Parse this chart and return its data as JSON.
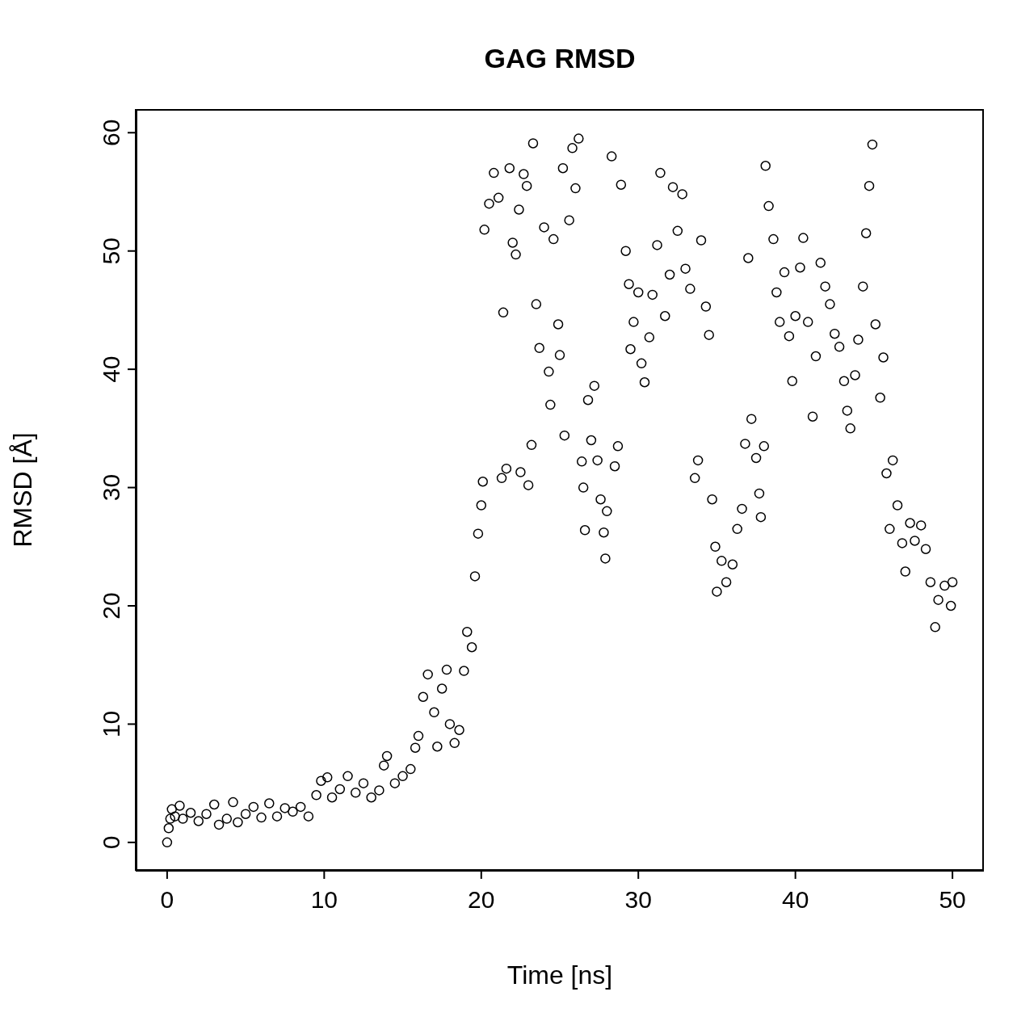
{
  "chart_data": {
    "type": "scatter",
    "title": "GAG RMSD",
    "xlabel": "Time [ns]",
    "ylabel": "RMSD [Å]",
    "xlim": [
      -2,
      52
    ],
    "xticks": [
      0,
      10,
      20,
      30,
      40,
      50
    ],
    "ylim": [
      -2.4,
      62
    ],
    "yticks": [
      0,
      10,
      20,
      30,
      40,
      50,
      60
    ],
    "grid": false,
    "legend": false,
    "marker": "circle",
    "series": [
      {
        "color": "#000000",
        "x": [
          0,
          0.1,
          0.2,
          0.3,
          0.5,
          0.8,
          1,
          1.5,
          2,
          2.5,
          3,
          3.3,
          3.8,
          4.2,
          4.5,
          5,
          5.5,
          6,
          6.5,
          7,
          7.5,
          8,
          8.5,
          9,
          9.5,
          9.8,
          10.2,
          10.5,
          11,
          11.5,
          12,
          12.5,
          13,
          13.5,
          13.8,
          14,
          14.5,
          15,
          15.5,
          15.8,
          16,
          16.3,
          16.6,
          17,
          17.2,
          17.5,
          17.8,
          18,
          18.3,
          18.6,
          18.9,
          19.1,
          19.4,
          19.6,
          19.8,
          20,
          20.1,
          20.2,
          20.5,
          20.8,
          21.1,
          21.3,
          21.4,
          21.6,
          21.8,
          22,
          22.2,
          22.4,
          22.7,
          22.9,
          22.5,
          23,
          23.2,
          23.3,
          23.5,
          23.7,
          24,
          24.3,
          24.4,
          24.6,
          24.9,
          25,
          25.2,
          25.3,
          25.6,
          25.8,
          26,
          26.2,
          26.4,
          26.5,
          26.6,
          26.8,
          27,
          27.2,
          27.4,
          27.6,
          27.8,
          27.9,
          28,
          28.3,
          28.5,
          28.7,
          28.9,
          29.2,
          29.4,
          29.5,
          29.7,
          30,
          30.2,
          30.4,
          30.7,
          30.9,
          31.2,
          31.4,
          31.7,
          32,
          32.2,
          32.5,
          32.8,
          33,
          33.3,
          33.6,
          33.8,
          34,
          34.3,
          34.5,
          34.7,
          34.9,
          35,
          35.3,
          35.6,
          36,
          36.3,
          36.6,
          36.8,
          37,
          37.2,
          37.5,
          37.7,
          37.8,
          38,
          38.1,
          38.3,
          38.6,
          38.8,
          39,
          39.3,
          39.6,
          39.8,
          40,
          40.3,
          40.5,
          40.8,
          41.1,
          41.3,
          41.6,
          41.9,
          42.2,
          42.5,
          42.8,
          43.1,
          43.3,
          43.5,
          43.8,
          44,
          44.3,
          44.5,
          44.7,
          44.9,
          45.1,
          45.4,
          45.6,
          45.8,
          46,
          46.2,
          46.5,
          46.8,
          47,
          47.3,
          47.6,
          48,
          48.3,
          48.6,
          48.9,
          49.1,
          49.5,
          49.9,
          50
        ],
        "values": [
          0,
          1.2,
          2,
          2.8,
          2.2,
          3.1,
          2,
          2.5,
          1.8,
          2.4,
          3.2,
          1.5,
          2,
          3.4,
          1.7,
          2.4,
          3,
          2.1,
          3.3,
          2.2,
          2.9,
          2.6,
          3,
          2.2,
          4,
          5.2,
          5.5,
          3.8,
          4.5,
          5.6,
          4.2,
          5,
          3.8,
          4.4,
          6.5,
          7.3,
          5,
          5.6,
          6.2,
          8,
          9,
          12.3,
          14.2,
          11,
          8.1,
          13,
          14.6,
          10,
          8.4,
          9.5,
          14.5,
          17.8,
          16.5,
          22.5,
          26.1,
          28.5,
          30.5,
          51.8,
          54,
          56.6,
          54.5,
          30.8,
          44.8,
          31.6,
          57,
          50.7,
          49.7,
          53.5,
          56.5,
          55.5,
          31.3,
          30.2,
          33.6,
          59.1,
          45.5,
          41.8,
          52,
          39.8,
          37,
          51,
          43.8,
          41.2,
          57,
          34.4,
          52.6,
          58.7,
          55.3,
          59.5,
          32.2,
          30,
          26.4,
          37.4,
          34,
          38.6,
          32.3,
          29,
          26.2,
          24,
          28,
          58,
          31.8,
          33.5,
          55.6,
          50,
          47.2,
          41.7,
          44,
          46.5,
          40.5,
          38.9,
          42.7,
          46.3,
          50.5,
          56.6,
          44.5,
          48,
          55.4,
          51.7,
          54.8,
          48.5,
          46.8,
          30.8,
          32.3,
          50.9,
          45.3,
          42.9,
          29,
          25,
          21.2,
          23.8,
          22,
          23.5,
          26.5,
          28.2,
          33.7,
          49.4,
          35.8,
          32.5,
          29.5,
          27.5,
          33.5,
          57.2,
          53.8,
          51,
          46.5,
          44,
          48.2,
          42.8,
          39,
          44.5,
          48.6,
          51.1,
          44,
          36,
          41.1,
          49,
          47,
          45.5,
          43,
          41.9,
          39,
          36.5,
          35,
          39.5,
          42.5,
          47,
          51.5,
          55.5,
          59,
          43.8,
          37.6,
          41,
          31.2,
          26.5,
          32.3,
          28.5,
          25.3,
          22.9,
          27,
          25.5,
          26.8,
          24.8,
          22,
          18.2,
          20.5,
          21.7,
          20,
          22
        ]
      }
    ]
  }
}
